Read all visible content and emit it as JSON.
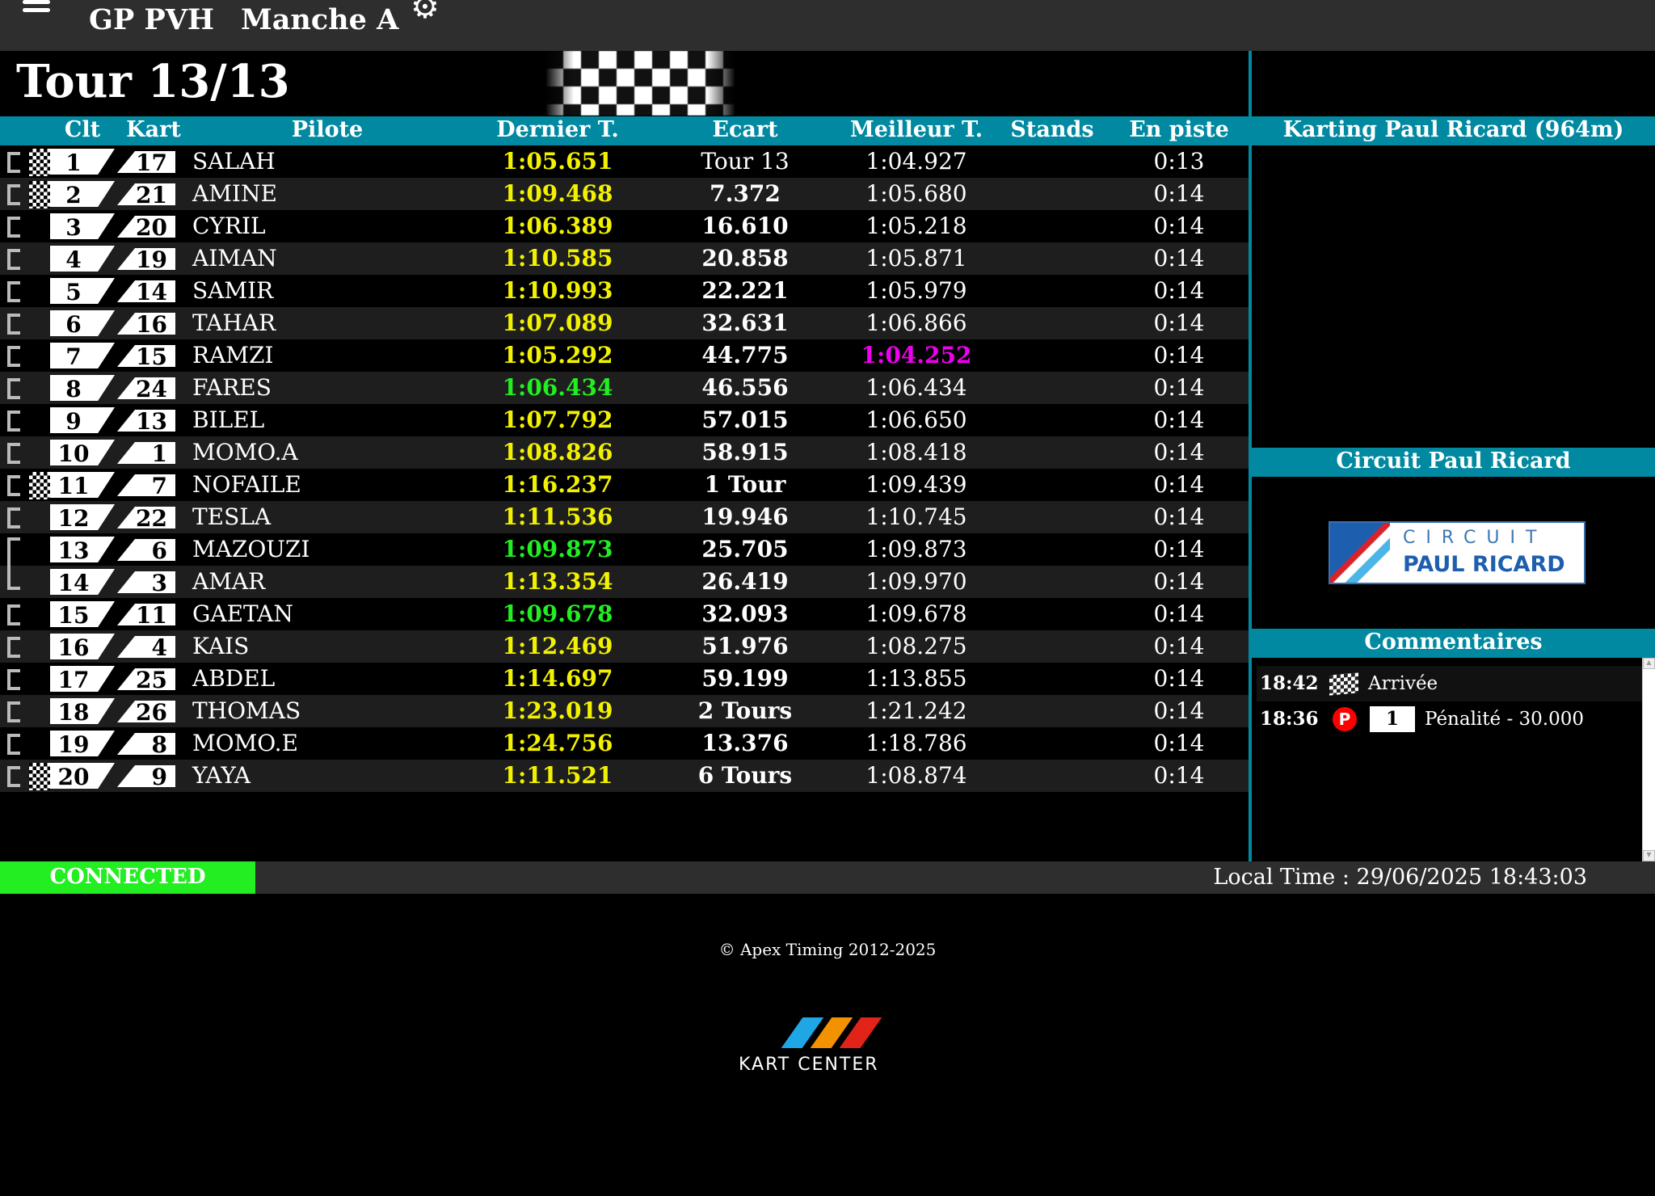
{
  "header": {
    "title": "GP PVH",
    "subtitle": "Manche A",
    "menu_icon": "hamburger-icon",
    "settings_icon": "gear-icon"
  },
  "race": {
    "lap_status": "Tour 13/13"
  },
  "colors": {
    "accent": "#0089a0",
    "yellow": "#f2f200",
    "green": "#22ee22",
    "magenta": "#ee00ee",
    "connected": "#22ee22"
  },
  "columns": {
    "clt": "Clt",
    "kart": "Kart",
    "pilote": "Pilote",
    "last": "Dernier T.",
    "gap": "Ecart",
    "best": "Meilleur T.",
    "stands": "Stands",
    "on_track": "En piste"
  },
  "rows": [
    {
      "pos": "1",
      "kart": "17",
      "name": "SALAH",
      "last": "1:05.651",
      "last_color": "yellow",
      "gap": "Tour 13",
      "gap_bold": false,
      "best": "1:04.927",
      "best_color": "white",
      "stands": "",
      "on_track": "0:13",
      "finish_flag": true
    },
    {
      "pos": "2",
      "kart": "21",
      "name": "AMINE",
      "last": "1:09.468",
      "last_color": "yellow",
      "gap": "7.372",
      "gap_bold": true,
      "best": "1:05.680",
      "best_color": "white",
      "stands": "",
      "on_track": "0:14",
      "finish_flag": true
    },
    {
      "pos": "3",
      "kart": "20",
      "name": "CYRIL",
      "last": "1:06.389",
      "last_color": "yellow",
      "gap": "16.610",
      "gap_bold": true,
      "best": "1:05.218",
      "best_color": "white",
      "stands": "",
      "on_track": "0:14",
      "finish_flag": false
    },
    {
      "pos": "4",
      "kart": "19",
      "name": "AIMAN",
      "last": "1:10.585",
      "last_color": "yellow",
      "gap": "20.858",
      "gap_bold": true,
      "best": "1:05.871",
      "best_color": "white",
      "stands": "",
      "on_track": "0:14",
      "finish_flag": false
    },
    {
      "pos": "5",
      "kart": "14",
      "name": "SAMIR",
      "last": "1:10.993",
      "last_color": "yellow",
      "gap": "22.221",
      "gap_bold": true,
      "best": "1:05.979",
      "best_color": "white",
      "stands": "",
      "on_track": "0:14",
      "finish_flag": false
    },
    {
      "pos": "6",
      "kart": "16",
      "name": "TAHAR",
      "last": "1:07.089",
      "last_color": "yellow",
      "gap": "32.631",
      "gap_bold": true,
      "best": "1:06.866",
      "best_color": "white",
      "stands": "",
      "on_track": "0:14",
      "finish_flag": false
    },
    {
      "pos": "7",
      "kart": "15",
      "name": "RAMZI",
      "last": "1:05.292",
      "last_color": "yellow",
      "gap": "44.775",
      "gap_bold": true,
      "best": "1:04.252",
      "best_color": "magenta",
      "stands": "",
      "on_track": "0:14",
      "finish_flag": false
    },
    {
      "pos": "8",
      "kart": "24",
      "name": "FARES",
      "last": "1:06.434",
      "last_color": "green",
      "gap": "46.556",
      "gap_bold": true,
      "best": "1:06.434",
      "best_color": "white",
      "stands": "",
      "on_track": "0:14",
      "finish_flag": false
    },
    {
      "pos": "9",
      "kart": "13",
      "name": "BILEL",
      "last": "1:07.792",
      "last_color": "yellow",
      "gap": "57.015",
      "gap_bold": true,
      "best": "1:06.650",
      "best_color": "white",
      "stands": "",
      "on_track": "0:14",
      "finish_flag": false
    },
    {
      "pos": "10",
      "kart": "1",
      "name": "MOMO.A",
      "last": "1:08.826",
      "last_color": "yellow",
      "gap": "58.915",
      "gap_bold": true,
      "best": "1:08.418",
      "best_color": "white",
      "stands": "",
      "on_track": "0:14",
      "finish_flag": false
    },
    {
      "pos": "11",
      "kart": "7",
      "name": "NOFAILE",
      "last": "1:16.237",
      "last_color": "yellow",
      "gap": "1 Tour",
      "gap_bold": true,
      "best": "1:09.439",
      "best_color": "white",
      "stands": "",
      "on_track": "0:14",
      "finish_flag": true
    },
    {
      "pos": "12",
      "kart": "22",
      "name": "TESLA",
      "last": "1:11.536",
      "last_color": "yellow",
      "gap": "19.946",
      "gap_bold": true,
      "best": "1:10.745",
      "best_color": "white",
      "stands": "",
      "on_track": "0:14",
      "finish_flag": false
    },
    {
      "pos": "13",
      "kart": "6",
      "name": "MAZOUZI",
      "last": "1:09.873",
      "last_color": "green",
      "gap": "25.705",
      "gap_bold": true,
      "best": "1:09.873",
      "best_color": "white",
      "stands": "",
      "on_track": "0:14",
      "finish_flag": false
    },
    {
      "pos": "14",
      "kart": "3",
      "name": "AMAR",
      "last": "1:13.354",
      "last_color": "yellow",
      "gap": "26.419",
      "gap_bold": true,
      "best": "1:09.970",
      "best_color": "white",
      "stands": "",
      "on_track": "0:14",
      "finish_flag": false
    },
    {
      "pos": "15",
      "kart": "11",
      "name": "GAETAN",
      "last": "1:09.678",
      "last_color": "green",
      "gap": "32.093",
      "gap_bold": true,
      "best": "1:09.678",
      "best_color": "white",
      "stands": "",
      "on_track": "0:14",
      "finish_flag": false
    },
    {
      "pos": "16",
      "kart": "4",
      "name": "KAIS",
      "last": "1:12.469",
      "last_color": "yellow",
      "gap": "51.976",
      "gap_bold": true,
      "best": "1:08.275",
      "best_color": "white",
      "stands": "",
      "on_track": "0:14",
      "finish_flag": false
    },
    {
      "pos": "17",
      "kart": "25",
      "name": "ABDEL",
      "last": "1:14.697",
      "last_color": "yellow",
      "gap": "59.199",
      "gap_bold": true,
      "best": "1:13.855",
      "best_color": "white",
      "stands": "",
      "on_track": "0:14",
      "finish_flag": false
    },
    {
      "pos": "18",
      "kart": "26",
      "name": "THOMAS",
      "last": "1:23.019",
      "last_color": "yellow",
      "gap": "2 Tours",
      "gap_bold": true,
      "best": "1:21.242",
      "best_color": "white",
      "stands": "",
      "on_track": "0:14",
      "finish_flag": false
    },
    {
      "pos": "19",
      "kart": "8",
      "name": "MOMO.E",
      "last": "1:24.756",
      "last_color": "yellow",
      "gap": "13.376",
      "gap_bold": true,
      "best": "1:18.786",
      "best_color": "white",
      "stands": "",
      "on_track": "0:14",
      "finish_flag": false
    },
    {
      "pos": "20",
      "kart": "9",
      "name": "YAYA",
      "last": "1:11.521",
      "last_color": "yellow",
      "gap": "6 Tours",
      "gap_bold": true,
      "best": "1:08.874",
      "best_color": "white",
      "stands": "",
      "on_track": "0:14",
      "finish_flag": true
    }
  ],
  "right": {
    "track_title": "Karting Paul Ricard (964m)",
    "circuit_title": "Circuit Paul Ricard",
    "circuit_logo": {
      "line1": "CIRCUIT",
      "line2": "PAUL RICARD"
    },
    "comments_title": "Commentaires",
    "comments": [
      {
        "time": "18:42",
        "icon": "checkered-flag-icon",
        "text": "Arrivée"
      },
      {
        "time": "18:36",
        "icon": "penalty-icon",
        "icon_text": "P",
        "kart": "1",
        "text": "Pénalité - 30.000"
      }
    ]
  },
  "status": {
    "connection": "CONNECTED",
    "local_time": "Local Time : 29/06/2025 18:43:03"
  },
  "footer": {
    "copyright": "© Apex Timing 2012-2025",
    "logo_text": "KART CENTER"
  }
}
